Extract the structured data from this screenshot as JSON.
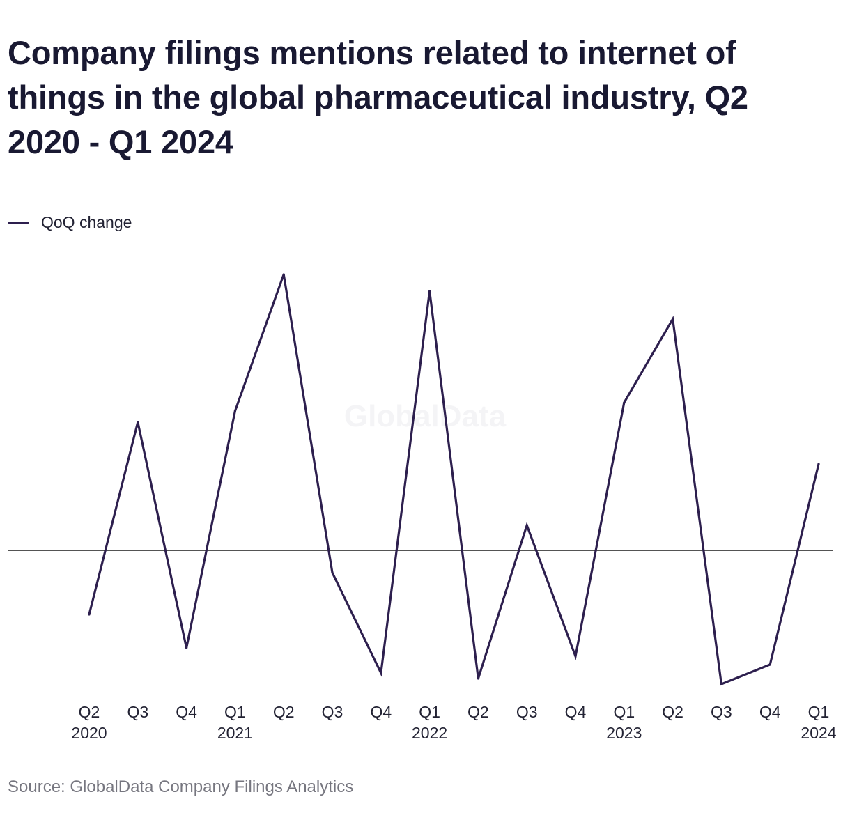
{
  "title": "Company filings mentions related to internet of things in the global pharmaceutical industry, Q2 2020 - Q1 2024",
  "watermark": "GlobalData",
  "source": "Source: GlobalData Company Filings Analytics",
  "colors": {
    "series": "#2d1f4e",
    "zero_line": "#1a1a1a",
    "watermark": "#f4f4f6"
  },
  "chart_data": {
    "type": "line",
    "title": "Company filings mentions related to internet of things in the global pharmaceutical industry, Q2 2020 - Q1 2024",
    "xlabel": "",
    "ylabel": "",
    "grid": false,
    "legend_position": "top-left",
    "ylim": [
      -0.5,
      1.0
    ],
    "zero_line": true,
    "categories": [
      {
        "quarter": "Q2",
        "year": "2020"
      },
      {
        "quarter": "Q3",
        "year": ""
      },
      {
        "quarter": "Q4",
        "year": ""
      },
      {
        "quarter": "Q1",
        "year": "2021"
      },
      {
        "quarter": "Q2",
        "year": ""
      },
      {
        "quarter": "Q3",
        "year": ""
      },
      {
        "quarter": "Q4",
        "year": ""
      },
      {
        "quarter": "Q1",
        "year": "2022"
      },
      {
        "quarter": "Q2",
        "year": ""
      },
      {
        "quarter": "Q3",
        "year": ""
      },
      {
        "quarter": "Q4",
        "year": ""
      },
      {
        "quarter": "Q1",
        "year": "2023"
      },
      {
        "quarter": "Q2",
        "year": ""
      },
      {
        "quarter": "Q3",
        "year": ""
      },
      {
        "quarter": "Q4",
        "year": ""
      },
      {
        "quarter": "Q1",
        "year": "2024"
      }
    ],
    "series": [
      {
        "name": "QoQ change",
        "values": [
          -0.23,
          0.46,
          -0.35,
          0.5,
          0.99,
          -0.08,
          -0.44,
          0.93,
          -0.46,
          0.09,
          -0.38,
          0.53,
          0.83,
          -0.48,
          -0.41,
          0.31
        ]
      }
    ]
  }
}
